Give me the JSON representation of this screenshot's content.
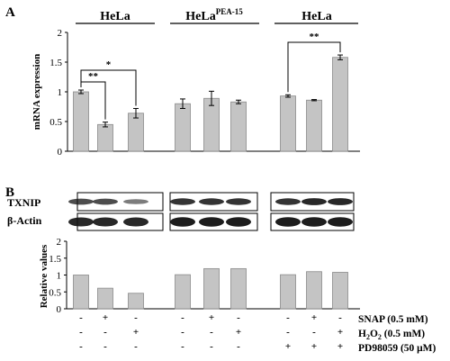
{
  "figure": {
    "panel_a": "A",
    "panel_b": "B"
  },
  "colors": {
    "bar_fill": "#c4c4c4",
    "bar_stroke": "#8a8a8a",
    "axis": "#000000",
    "band": "#111111"
  },
  "chart_data": [
    {
      "type": "bar",
      "panel": "A",
      "ylabel": "mRNA expression",
      "ylim": [
        0,
        2
      ],
      "yticks": [
        "0",
        "0.5",
        "1",
        "1.5",
        "2"
      ],
      "yticks_values": [
        0,
        0.5,
        1,
        1.5,
        2
      ],
      "groups": [
        {
          "title": "HeLa",
          "values": [
            1.0,
            0.45,
            0.64
          ],
          "errors": [
            0.03,
            0.04,
            0.08
          ]
        },
        {
          "title": "HeLa",
          "title_sup": "PEA-15",
          "values": [
            0.8,
            0.89,
            0.83
          ],
          "errors": [
            0.08,
            0.12,
            0.03
          ]
        },
        {
          "title": "HeLa",
          "values": [
            0.93,
            0.86,
            1.58
          ],
          "errors": [
            0.02,
            0.01,
            0.04
          ]
        }
      ],
      "significance": [
        {
          "label": "**",
          "group": 0,
          "from": 0,
          "to": 1
        },
        {
          "label": "*",
          "group": 0,
          "from": 0,
          "to": 2
        },
        {
          "label": "**",
          "group": 2,
          "from": 0,
          "to": 2
        }
      ]
    },
    {
      "type": "bar",
      "panel": "B",
      "ylabel": "Relative values",
      "ylim": [
        0,
        2
      ],
      "yticks": [
        "0",
        "0.5",
        "1",
        "1.5",
        "2"
      ],
      "yticks_values": [
        0,
        0.5,
        1,
        1.5,
        2
      ],
      "groups": [
        {
          "values": [
            1.0,
            0.61,
            0.46
          ]
        },
        {
          "values": [
            1.01,
            1.19,
            1.19
          ]
        },
        {
          "values": [
            1.01,
            1.1,
            1.08
          ]
        }
      ]
    }
  ],
  "blots": {
    "rows": [
      {
        "label": "TXNIP",
        "intensity": [
          0.75,
          0.75,
          0.55,
          0.85,
          0.85,
          0.85,
          0.85,
          0.9,
          0.9
        ]
      },
      {
        "label": "β-Actin",
        "intensity": [
          0.9,
          0.9,
          0.9,
          0.95,
          0.95,
          0.95,
          0.95,
          0.95,
          0.95
        ]
      }
    ]
  },
  "conditions": {
    "rows": [
      {
        "label": "SNAP (0.5 mM)",
        "signs": [
          "-",
          "+",
          "-",
          "-",
          "+",
          "-",
          "-",
          "+",
          "-"
        ]
      },
      {
        "label_prefix": "H",
        "label_sub": "2",
        "label_mid": "O",
        "label_sub2": "2",
        "label_suffix": " (0.5 mM)",
        "signs": [
          "-",
          "-",
          "+",
          "-",
          "-",
          "+",
          "-",
          "-",
          "+"
        ]
      },
      {
        "label": "PD98059 (50 μM)",
        "signs": [
          "-",
          "-",
          "-",
          "-",
          "-",
          "-",
          "+",
          "+",
          "+"
        ]
      }
    ]
  }
}
